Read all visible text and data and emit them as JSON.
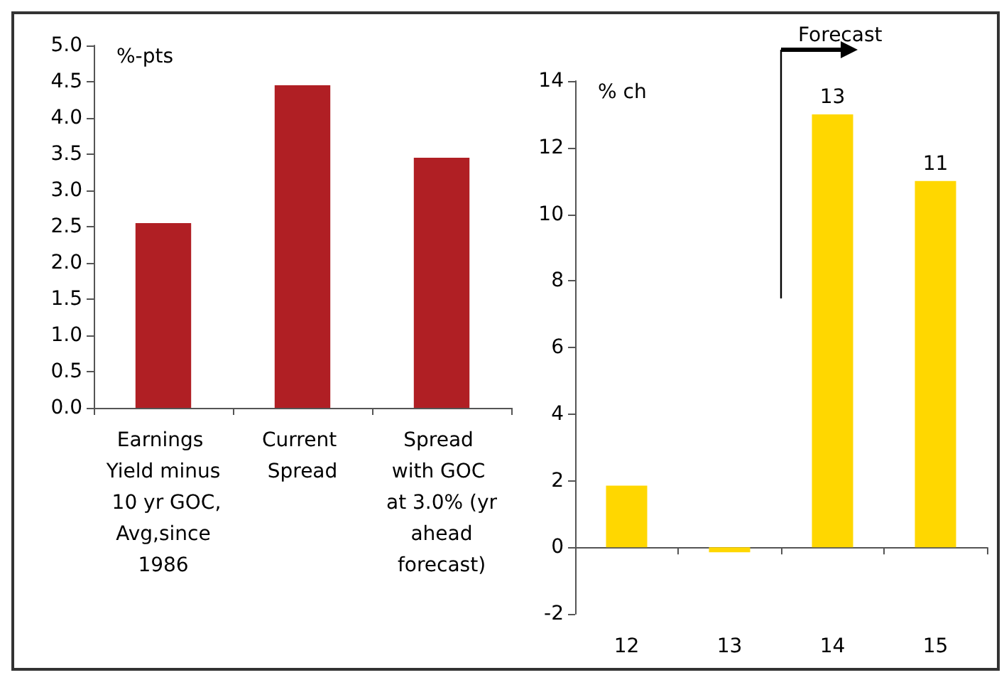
{
  "chart_data": [
    {
      "type": "bar",
      "ylabel": "%-pts",
      "categories": [
        "Earnings Yield minus 10 yr GOC, Avg,since 1986",
        "Current Spread",
        "Spread with GOC at 3.0% (yr ahead forecast)"
      ],
      "values": [
        2.55,
        4.45,
        3.45
      ],
      "color": "#b01f24",
      "ylim": [
        0,
        5
      ],
      "yticks": [
        {
          "value": 0,
          "label": "0.0"
        },
        {
          "value": 0.5,
          "label": "0.5"
        },
        {
          "value": 1,
          "label": "1.0"
        },
        {
          "value": 1.5,
          "label": "1.5"
        },
        {
          "value": 2,
          "label": "2.0"
        },
        {
          "value": 2.5,
          "label": "2.5"
        },
        {
          "value": 3,
          "label": "3.0"
        },
        {
          "value": 3.5,
          "label": "3.5"
        },
        {
          "value": 4,
          "label": "4.0"
        },
        {
          "value": 4.5,
          "label": "4.5"
        },
        {
          "value": 5,
          "label": "5.0"
        }
      ]
    },
    {
      "type": "bar",
      "ylabel": "% ch",
      "categories": [
        "12",
        "13",
        "14",
        "15"
      ],
      "values": [
        1.85,
        -0.15,
        13,
        11
      ],
      "value_labels": [
        null,
        null,
        "13",
        "11"
      ],
      "color": "#ffd700",
      "ylim": [
        -2,
        14
      ],
      "yticks": [
        -2,
        0,
        2,
        4,
        6,
        8,
        10,
        12,
        14
      ],
      "annotations": [
        "Forecast"
      ]
    }
  ]
}
